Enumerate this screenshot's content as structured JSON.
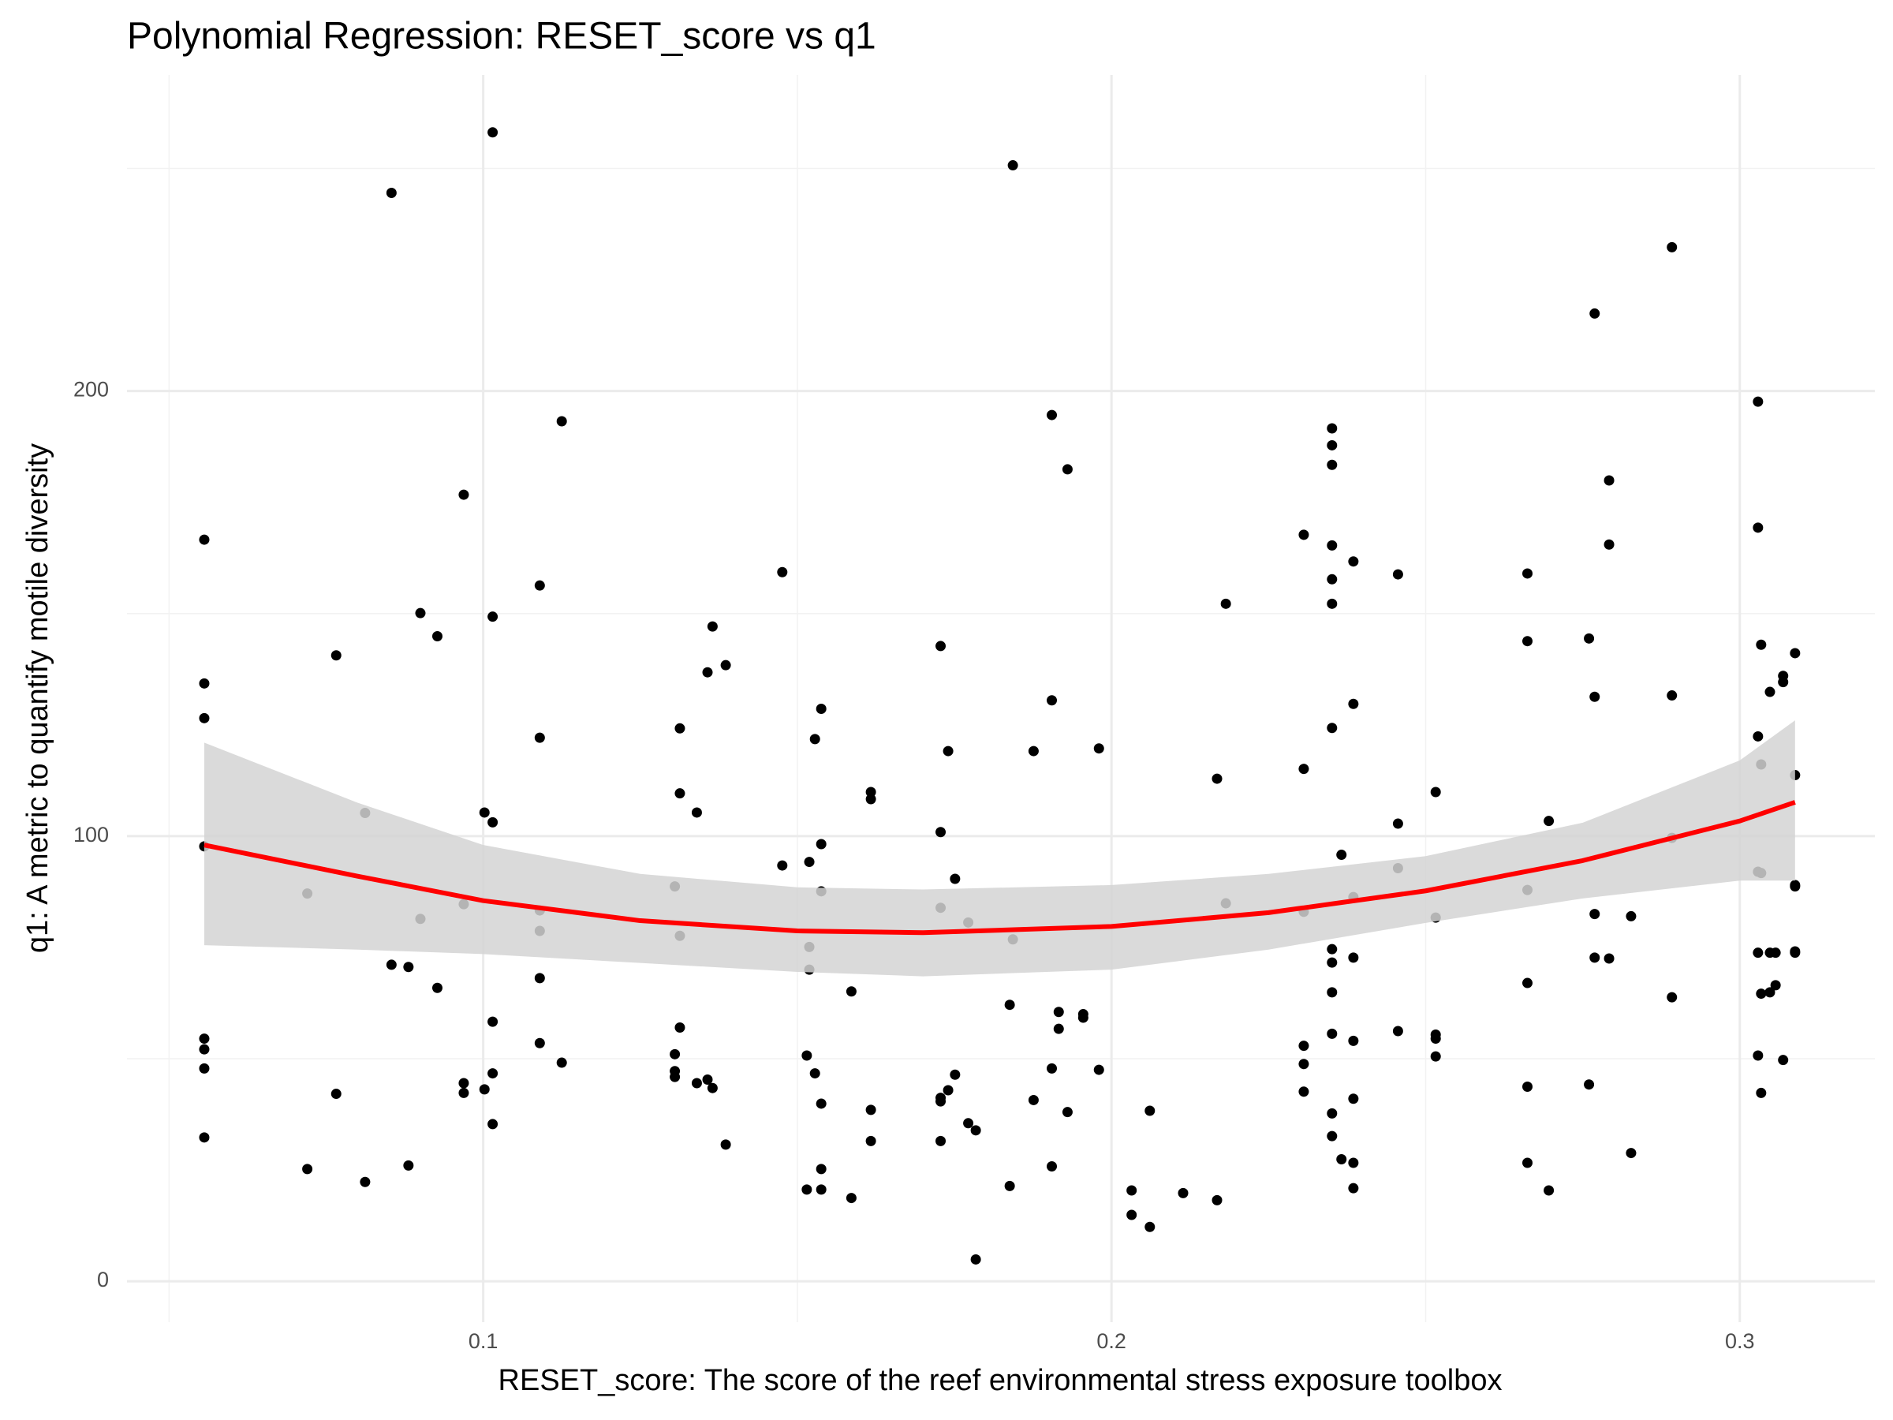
{
  "chart_data": {
    "type": "scatter",
    "title": "Polynomial Regression: RESET_score vs q1",
    "x_label": "RESET_score: The score of the reef environmental stress exposure toolbox",
    "y_label": "q1: A metric to quantify motile diversity",
    "xlim": [
      0.0433,
      0.3215
    ],
    "ylim": [
      -9.2,
      271
    ],
    "xticks": [
      0.1,
      0.2,
      0.3
    ],
    "yticks": [
      0,
      100,
      200
    ],
    "xminor": [
      0.05,
      0.15,
      0.25
    ],
    "yminor": [
      50,
      150,
      250
    ],
    "grid": true,
    "series": [
      {
        "color": "#000000",
        "x": [
          0.0556,
          0.0556,
          0.0556,
          0.0556,
          0.0556,
          0.0556,
          0.0556,
          0.0556,
          0.072,
          0.072,
          0.0766,
          0.0766,
          0.0812,
          0.0812,
          0.0854,
          0.0854,
          0.0881,
          0.0881,
          0.09,
          0.09,
          0.0927,
          0.0927,
          0.0969,
          0.0969,
          0.0969,
          0.0969,
          0.1002,
          0.1002,
          0.1015,
          0.1015,
          0.1015,
          0.1015,
          0.1015,
          0.1015,
          0.109,
          0.109,
          0.109,
          0.109,
          0.109,
          0.109,
          0.1125,
          0.1125,
          0.1305,
          0.1305,
          0.1305,
          0.1305,
          0.1313,
          0.1313,
          0.1313,
          0.1313,
          0.134,
          0.134,
          0.1357,
          0.1357,
          0.1365,
          0.1365,
          0.1386,
          0.1386,
          0.1476,
          0.1476,
          0.1515,
          0.1515,
          0.1519,
          0.1519,
          0.1519,
          0.1528,
          0.1528,
          0.1538,
          0.1538,
          0.1538,
          0.1538,
          0.1538,
          0.1538,
          0.1586,
          0.1586,
          0.1617,
          0.1617,
          0.1617,
          0.1617,
          0.1728,
          0.1728,
          0.1728,
          0.1728,
          0.1728,
          0.1728,
          0.174,
          0.174,
          0.1751,
          0.1751,
          0.1772,
          0.1772,
          0.1784,
          0.1784,
          0.1838,
          0.1838,
          0.1843,
          0.1843,
          0.1876,
          0.1876,
          0.1905,
          0.1905,
          0.1905,
          0.1905,
          0.1916,
          0.1916,
          0.193,
          0.193,
          0.1955,
          0.1955,
          0.198,
          0.198,
          0.2032,
          0.2032,
          0.2061,
          0.2061,
          0.2114,
          0.2168,
          0.2168,
          0.2182,
          0.2182,
          0.2306,
          0.2306,
          0.2306,
          0.2306,
          0.2306,
          0.2306,
          0.2351,
          0.2351,
          0.2351,
          0.2351,
          0.2351,
          0.2351,
          0.2351,
          0.2351,
          0.2351,
          0.2351,
          0.2351,
          0.2351,
          0.2351,
          0.2366,
          0.2366,
          0.2385,
          0.2385,
          0.2385,
          0.2385,
          0.2385,
          0.2385,
          0.2385,
          0.2385,
          0.2456,
          0.2456,
          0.2456,
          0.2456,
          0.2516,
          0.2516,
          0.2516,
          0.2516,
          0.2516,
          0.2662,
          0.2662,
          0.2662,
          0.2662,
          0.2662,
          0.2662,
          0.2696,
          0.2696,
          0.276,
          0.276,
          0.2769,
          0.2769,
          0.2769,
          0.2769,
          0.2792,
          0.2792,
          0.2792,
          0.2827,
          0.2827,
          0.2892,
          0.2892,
          0.2892,
          0.2892,
          0.3029,
          0.3029,
          0.3029,
          0.3029,
          0.3029,
          0.3029,
          0.3034,
          0.3034,
          0.3034,
          0.3034,
          0.3034,
          0.3048,
          0.3048,
          0.3048,
          0.3057,
          0.3057,
          0.3069,
          0.3069,
          0.3069,
          0.3088,
          0.3088,
          0.3088,
          0.3088,
          0.3088,
          0.3088
        ],
        "y": [
          166.6,
          134.3,
          126.5,
          97.7,
          54.5,
          52.1,
          47.8,
          32.3,
          87.1,
          25.2,
          140.6,
          42.1,
          105.2,
          22.3,
          244.5,
          71.1,
          70.6,
          26.0,
          150.1,
          81.4,
          144.9,
          65.9,
          176.7,
          84.7,
          44.5,
          42.3,
          105.3,
          43.1,
          258.1,
          149.3,
          103.1,
          58.3,
          46.7,
          35.3,
          156.3,
          122.1,
          83.3,
          78.7,
          68.1,
          53.5,
          193.2,
          49.1,
          88.7,
          51.0,
          47.2,
          45.9,
          124.2,
          109.6,
          77.6,
          57.0,
          105.3,
          44.5,
          136.8,
          45.3,
          147.1,
          43.4,
          138.4,
          30.7,
          159.3,
          93.4,
          50.7,
          20.6,
          94.2,
          75.1,
          70.0,
          121.8,
          46.7,
          128.6,
          98.2,
          87.6,
          39.9,
          25.2,
          20.6,
          65.1,
          18.7,
          109.9,
          108.3,
          38.5,
          31.5,
          142.7,
          100.9,
          83.9,
          41.2,
          40.4,
          31.5,
          119.1,
          42.9,
          90.4,
          46.4,
          80.6,
          35.5,
          33.9,
          4.9,
          62.1,
          21.4,
          250.7,
          76.8,
          119.1,
          40.7,
          194.6,
          130.5,
          47.8,
          25.8,
          60.5,
          56.7,
          182.4,
          38.0,
          60.0,
          59.2,
          119.7,
          47.5,
          20.4,
          14.9,
          38.3,
          12.2,
          19.8,
          112.9,
          18.2,
          152.2,
          84.9,
          167.7,
          115.1,
          83.0,
          52.9,
          48.8,
          42.6,
          191.6,
          187.8,
          183.4,
          165.3,
          157.7,
          152.2,
          124.3,
          74.6,
          71.6,
          64.9,
          55.6,
          37.7,
          32.6,
          95.8,
          27.4,
          161.7,
          129.7,
          86.3,
          72.7,
          54.0,
          41.0,
          26.6,
          20.9,
          158.8,
          102.8,
          92.8,
          56.2,
          109.9,
          81.7,
          55.4,
          54.5,
          50.5,
          159.0,
          143.8,
          87.9,
          67.0,
          43.7,
          26.6,
          103.4,
          20.4,
          144.4,
          44.2,
          217.4,
          131.3,
          82.5,
          72.7,
          179.9,
          165.5,
          72.5,
          82.0,
          28.8,
          232.3,
          131.6,
          99.6,
          63.8,
          197.6,
          169.3,
          122.4,
          92.0,
          73.8,
          50.7,
          143.0,
          116.1,
          91.7,
          64.6,
          42.3,
          132.4,
          64.9,
          73.8,
          66.5,
          73.8,
          136.0,
          134.6,
          49.7,
          141.1,
          113.7,
          89.0,
          88.7,
          74.1,
          73.8
        ]
      }
    ],
    "fit": {
      "color": "#ff0000",
      "band_color": "#d3d3d3",
      "x": [
        0.0556,
        0.08,
        0.1,
        0.125,
        0.15,
        0.17,
        0.2,
        0.225,
        0.25,
        0.275,
        0.3,
        0.3088
      ],
      "values": [
        98,
        91,
        85.5,
        81,
        78.7,
        78.3,
        79.7,
        82.8,
        87.7,
        94.5,
        103.4,
        107.6
      ],
      "lower": [
        75.5,
        74.5,
        73.5,
        71.5,
        69.5,
        68.5,
        70,
        74.5,
        80.5,
        86,
        90,
        90
      ],
      "upper": [
        121,
        107.5,
        98,
        91.5,
        88.5,
        88,
        89,
        91.5,
        95.5,
        103,
        117,
        126
      ]
    }
  }
}
